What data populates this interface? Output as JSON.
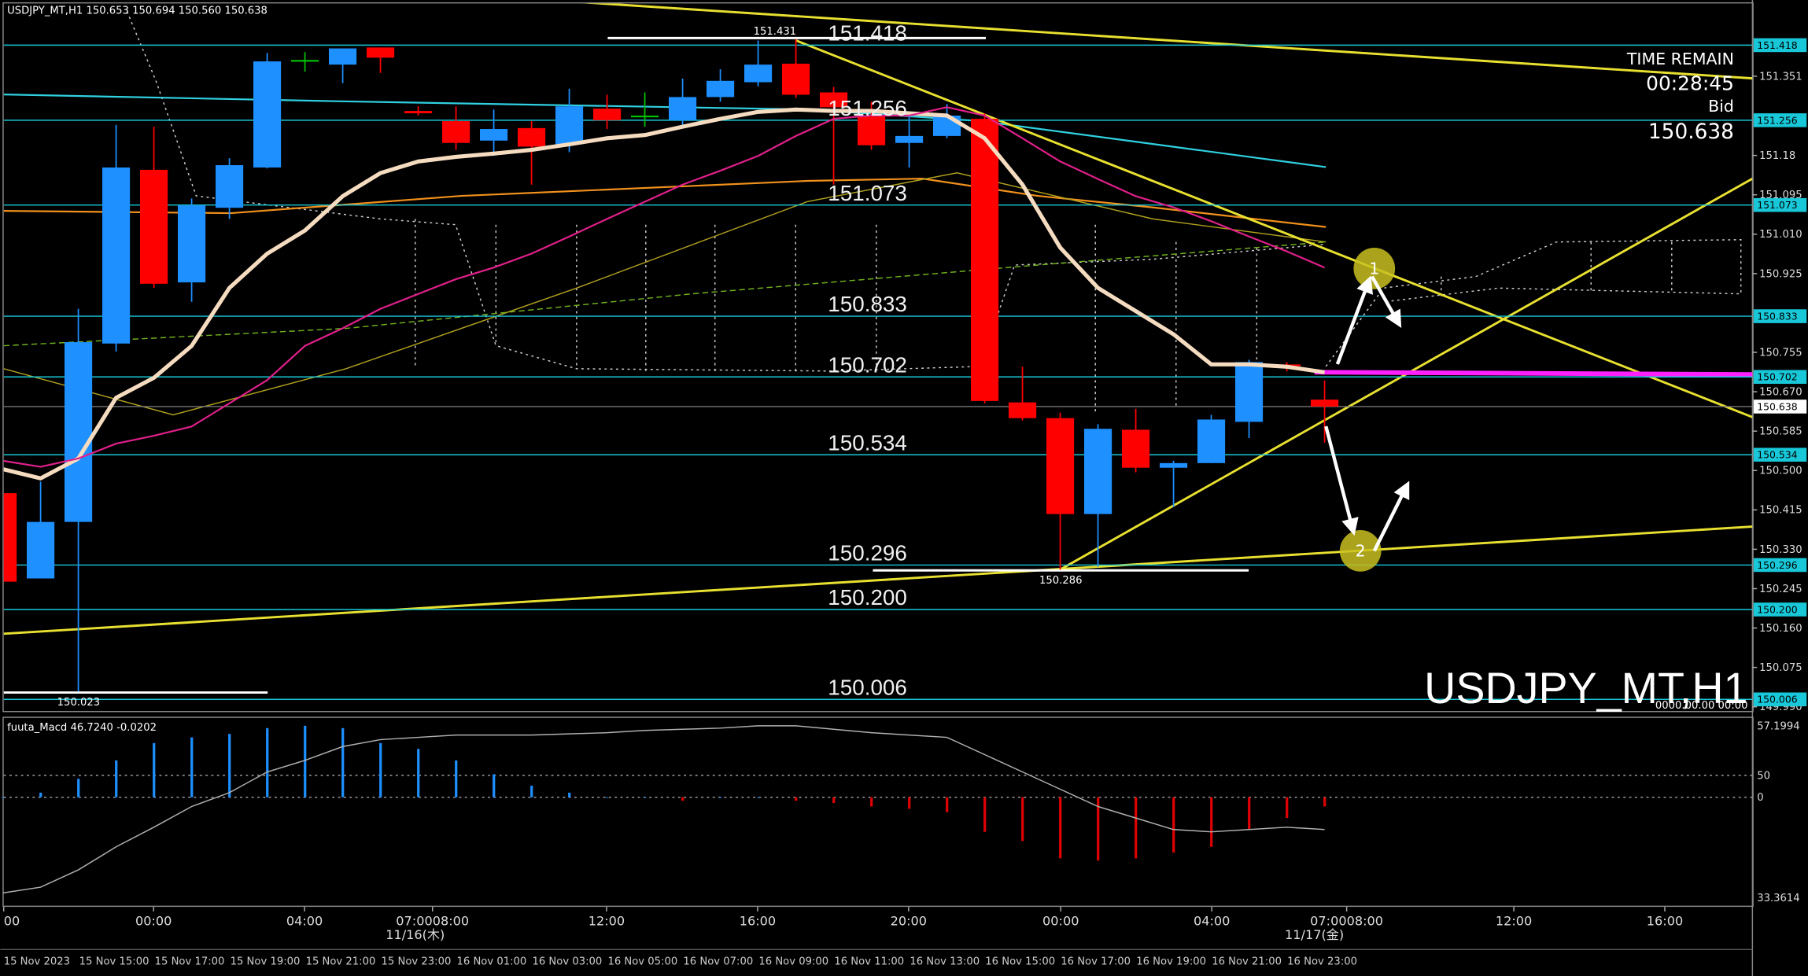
{
  "window_title": "USDJPY_MT,H1  150.653 150.694 150.560 150.638",
  "info": {
    "time_remain_label": "TIME REMAIN",
    "time_remain": "00:28:45",
    "bid_label": "Bid",
    "bid": "150.638"
  },
  "watermark": "USDJPY_MT,H1",
  "watermark_time": "0000.00.00 00:00",
  "markers": [
    "1",
    "2"
  ],
  "time_axis": {
    "labels": [
      "00",
      "00:00",
      "04:00",
      "07:0008:00",
      "12:00",
      "16:00",
      "20:00",
      "00:00",
      "04:00",
      "07:0008:00",
      "12:00",
      "16:00"
    ],
    "dates": [
      "11/16(木)",
      "11/17(金)"
    ],
    "bottom_labels": [
      "15 Nov 2023",
      "15 Nov 15:00",
      "15 Nov 17:00",
      "15 Nov 19:00",
      "15 Nov 21:00",
      "15 Nov 23:00",
      "16 Nov 01:00",
      "16 Nov 03:00",
      "16 Nov 05:00",
      "16 Nov 07:00",
      "16 Nov 09:00",
      "16 Nov 11:00",
      "16 Nov 13:00",
      "16 Nov 15:00",
      "16 Nov 17:00",
      "16 Nov 19:00",
      "16 Nov 21:00",
      "16 Nov 23:00"
    ]
  },
  "chart_data": [
    {
      "type": "candlestick",
      "up_color": "#1e90ff",
      "down_color": "#ff0000",
      "doji_color": "#00c000",
      "ylim": [
        149.981,
        151.508
      ],
      "yticks": [
        151.351,
        151.18,
        151.095,
        {
          "value": 151.01,
          "label": "151.010"
        },
        150.925,
        150.755,
        {
          "value": 150.67,
          "label": "150.670"
        },
        150.585,
        {
          "value": 150.5,
          "label": "150.500"
        },
        150.415,
        {
          "value": 150.33,
          "label": "150.330"
        },
        150.245,
        {
          "value": 150.16,
          "label": "150.160"
        },
        150.075,
        {
          "value": 149.99,
          "label": "149.990"
        }
      ],
      "categories": [
        null,
        null,
        null,
        null,
        null,
        null,
        null,
        null,
        null,
        null,
        null,
        null,
        null,
        null,
        null,
        null,
        null,
        null,
        null,
        null,
        null,
        null,
        null,
        null,
        null,
        null,
        null,
        null,
        null,
        null,
        null,
        null,
        null,
        null,
        null,
        null
      ],
      "open": [
        150.451,
        150.267,
        150.389,
        150.774,
        151.149,
        150.906,
        151.067,
        151.154,
        151.386,
        151.376,
        151.413,
        151.276,
        151.254,
        151.212,
        151.239,
        151.204,
        151.281,
        151.266,
        151.256,
        151.306,
        151.338,
        151.378,
        151.316,
        151.266,
        151.207,
        151.222,
        151.259,
        150.647,
        150.613,
        150.406,
        150.588,
        150.506,
        150.516,
        150.605,
        150.729,
        150.653
      ],
      "high": [
        150.471,
        150.476,
        150.849,
        151.246,
        151.242,
        151.087,
        151.174,
        151.401,
        151.403,
        151.411,
        151.413,
        151.286,
        151.286,
        151.279,
        151.254,
        151.324,
        151.311,
        151.316,
        151.346,
        151.366,
        151.428,
        151.431,
        151.328,
        151.296,
        151.266,
        151.291,
        151.271,
        150.724,
        150.625,
        150.6,
        150.633,
        150.521,
        150.62,
        150.739,
        150.734,
        150.694
      ],
      "low": [
        150.247,
        150.267,
        150.023,
        150.757,
        150.894,
        150.864,
        151.043,
        151.152,
        151.361,
        151.336,
        151.358,
        151.266,
        151.192,
        151.179,
        151.117,
        151.187,
        151.237,
        151.242,
        151.242,
        151.296,
        151.329,
        151.304,
        151.117,
        151.192,
        151.154,
        151.217,
        150.645,
        150.608,
        150.286,
        150.292,
        150.496,
        150.421,
        150.516,
        150.57,
        150.714,
        150.56
      ],
      "close": [
        150.26,
        150.389,
        150.777,
        151.154,
        150.903,
        151.072,
        151.159,
        151.383,
        151.386,
        151.411,
        151.391,
        151.271,
        151.207,
        151.237,
        151.199,
        151.286,
        151.256,
        151.266,
        151.306,
        151.341,
        151.376,
        151.311,
        151.284,
        151.202,
        151.222,
        151.266,
        150.65,
        150.613,
        150.406,
        150.59,
        150.506,
        150.516,
        150.61,
        150.734,
        150.727,
        150.638
      ],
      "series": [
        {
          "color": "#f5dcc0",
          "width": 3.5,
          "values": [
            150.503,
            150.483,
            150.526,
            150.657,
            150.7,
            150.769,
            150.894,
            150.968,
            151.018,
            151.092,
            151.142,
            151.167,
            151.177,
            151.184,
            151.192,
            151.204,
            151.217,
            151.224,
            151.242,
            151.259,
            151.274,
            151.279,
            151.276,
            151.276,
            151.271,
            151.266,
            151.217,
            151.117,
            150.981,
            150.894,
            150.844,
            150.794,
            150.729,
            150.729,
            150.724,
            150.712
          ]
        },
        {
          "color": "#e0208a",
          "width": 1.5,
          "values": [
            150.521,
            150.508,
            150.526,
            150.558,
            150.575,
            150.595,
            150.645,
            150.695,
            150.769,
            150.807,
            150.849,
            150.881,
            150.913,
            150.938,
            150.968,
            151.005,
            151.043,
            151.08,
            151.117,
            151.147,
            151.179,
            151.222,
            151.259,
            151.266,
            151.266,
            151.284,
            151.266,
            151.217,
            151.167,
            151.129,
            151.092,
            151.068,
            151.038,
            151.005,
            150.973,
            150.938
          ]
        }
      ],
      "levels": [
        151.418,
        151.256,
        151.073,
        150.833,
        150.702,
        150.534,
        150.296,
        {
          "value": 150.2,
          "label": "150.200"
        },
        150.006
      ],
      "level_color": "#18c8d8",
      "annotations": [
        151.431,
        150.286,
        150.023
      ]
    },
    {
      "type": "macd",
      "title": "fuuta_Macd 46.7240 -0.0202",
      "up_color": "#1e90ff",
      "down_color": "#e00000",
      "ylim": [
        -245,
        176
      ],
      "yticks": [
        50,
        0
      ],
      "scale_labels": [
        "57.1994",
        "33.3614"
      ],
      "values": [
        0,
        10.5,
        42.1,
        84.2,
        123.7,
        136.8,
        144.7,
        157.9,
        163.2,
        157.9,
        123.7,
        110.5,
        84.2,
        52.6,
        26.3,
        10.5,
        0,
        0,
        -7.9,
        0,
        0,
        -7.9,
        -13.2,
        -21.1,
        -26.3,
        -34.2,
        -78.9,
        -100,
        -139.5,
        -144.7,
        -139.5,
        -126.3,
        -113.2,
        -73.7,
        -47.4,
        -21.1
      ],
      "series": [
        {
          "color": "#b0b0b0",
          "values": [
            -218.4,
            -205.3,
            -165.8,
            -113.2,
            -68.4,
            -21.1,
            10.5,
            57.9,
            84.2,
            115.8,
            131.6,
            136.8,
            142.1,
            142.1,
            142.1,
            144.7,
            147.4,
            152.6,
            155.3,
            157.9,
            163.2,
            163.2,
            155.3,
            147.4,
            142.1,
            136.8,
            97.4,
            57.9,
            18.4,
            -21.1,
            -47.4,
            -73.7,
            -78.9,
            -73.7,
            -68.4,
            -73.7
          ]
        }
      ]
    }
  ]
}
